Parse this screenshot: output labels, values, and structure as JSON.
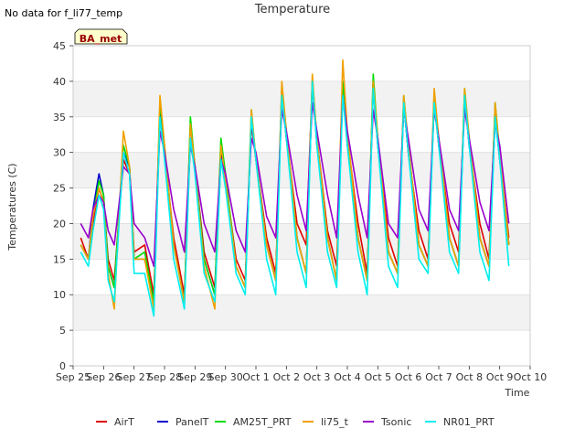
{
  "header": {
    "no_data_note": "No data for f_li77_temp",
    "title": "Temperature"
  },
  "annotation_box": {
    "label": "BA_met",
    "bg": "#ffffcc",
    "text_color": "#990000"
  },
  "chart_data": {
    "type": "line",
    "title": "Temperature",
    "xlabel": "Time",
    "ylabel": "Temperatures (C)",
    "ylim": [
      0,
      45
    ],
    "yticks": [
      0,
      5,
      10,
      15,
      20,
      25,
      30,
      35,
      40,
      45
    ],
    "xlim": [
      0,
      15
    ],
    "xticks": [
      "Sep 25",
      "Sep 26",
      "Sep 27",
      "Sep 28",
      "Sep 29",
      "Sep 30",
      "Oct 1",
      "Oct 2",
      "Oct 3",
      "Oct 4",
      "Oct 5",
      "Oct 6",
      "Oct 7",
      "Oct 8",
      "Oct 9",
      "Oct 10"
    ],
    "grid": true,
    "legend_position": "bottom",
    "series": [
      {
        "name": "AirT",
        "color": "#dd0000",
        "x": [
          0.25,
          0.5,
          0.65,
          0.85,
          1.0,
          1.15,
          1.35,
          1.65,
          1.85,
          2.0,
          2.35,
          2.65,
          2.85,
          3.0,
          3.3,
          3.65,
          3.85,
          4.0,
          4.3,
          4.65,
          4.85,
          5.0,
          5.35,
          5.65,
          5.85,
          6.0,
          6.35,
          6.65,
          6.85,
          7.0,
          7.35,
          7.65,
          7.85,
          8.0,
          8.35,
          8.65,
          8.85,
          9.0,
          9.35,
          9.65,
          9.85,
          10.0,
          10.35,
          10.65,
          10.85,
          11.0,
          11.35,
          11.65,
          11.85,
          12.0,
          12.35,
          12.65,
          12.85,
          13.0,
          13.35,
          13.65,
          13.85,
          14.0,
          14.3
        ],
        "y": [
          18,
          15,
          20,
          25,
          23,
          15,
          12,
          29,
          27,
          16,
          17,
          10,
          36,
          30,
          18,
          10,
          32,
          28,
          16,
          11,
          29,
          26,
          15,
          12,
          34,
          29,
          18,
          13,
          38,
          32,
          20,
          17,
          40,
          32,
          19,
          14,
          39,
          32,
          20,
          13,
          39,
          31,
          18,
          14,
          37,
          30,
          19,
          15,
          37,
          31,
          20,
          16,
          38,
          31,
          20,
          15,
          36,
          29,
          18
        ]
      },
      {
        "name": "PanelT",
        "color": "#0000cc",
        "x": [
          0.25,
          0.5,
          0.65,
          0.85,
          1.0,
          1.15,
          1.35,
          1.65,
          1.85,
          2.0,
          2.35,
          2.65,
          2.85,
          3.0,
          3.3,
          3.65,
          3.85,
          4.0,
          4.3,
          4.65,
          4.85,
          5.0,
          5.35,
          5.65,
          5.85,
          6.0,
          6.35,
          6.65,
          6.85,
          7.0,
          7.35,
          7.65,
          7.85,
          8.0,
          8.35,
          8.65,
          8.85,
          9.0,
          9.35,
          9.65,
          9.85,
          10.0,
          10.35,
          10.65,
          10.85,
          11.0,
          11.35,
          11.65,
          11.85,
          12.0,
          12.35,
          12.65,
          12.85,
          13.0,
          13.35,
          13.65,
          13.85,
          14.0,
          14.3
        ],
        "y": [
          17,
          15,
          22,
          27,
          24,
          14,
          11,
          30,
          28,
          15,
          15,
          9,
          36,
          30,
          17,
          9,
          34,
          28,
          15,
          10,
          30,
          26,
          14,
          11,
          35,
          29,
          17,
          12,
          39,
          32,
          18,
          13,
          40,
          31,
          18,
          12,
          39,
          31,
          18,
          12,
          40,
          31,
          16,
          13,
          37,
          30,
          17,
          14,
          38,
          31,
          18,
          14,
          38,
          31,
          18,
          14,
          35,
          29,
          17
        ]
      },
      {
        "name": "AM25T_PRT",
        "color": "#00dd00",
        "x": [
          0.25,
          0.5,
          0.65,
          0.85,
          1.0,
          1.15,
          1.35,
          1.65,
          1.85,
          2.0,
          2.35,
          2.65,
          2.85,
          3.0,
          3.3,
          3.65,
          3.85,
          4.0,
          4.3,
          4.65,
          4.85,
          5.0,
          5.35,
          5.65,
          5.85,
          6.0,
          6.35,
          6.65,
          6.85,
          7.0,
          7.35,
          7.65,
          7.85,
          8.0,
          8.35,
          8.65,
          8.85,
          9.0,
          9.35,
          9.65,
          9.85,
          10.0,
          10.35,
          10.65,
          10.85,
          11.0,
          11.35,
          11.65,
          11.85,
          12.0,
          12.35,
          12.65,
          12.85,
          13.0,
          13.35,
          13.65,
          13.85,
          14.0,
          14.3
        ],
        "y": [
          17,
          15,
          21,
          26,
          24,
          14,
          11,
          31,
          28,
          15,
          16,
          9,
          37,
          31,
          17,
          9,
          35,
          28,
          15,
          10,
          32,
          27,
          14,
          11,
          36,
          29,
          17,
          12,
          39,
          33,
          18,
          13,
          40,
          32,
          18,
          12,
          40,
          32,
          18,
          12,
          41,
          32,
          16,
          13,
          38,
          31,
          17,
          14,
          38,
          32,
          18,
          14,
          39,
          32,
          18,
          14,
          37,
          30,
          17
        ]
      },
      {
        "name": "li75_t",
        "color": "#f0a000",
        "x": [
          0.25,
          0.5,
          0.65,
          0.85,
          1.0,
          1.15,
          1.35,
          1.65,
          1.85,
          2.0,
          2.35,
          2.65,
          2.85,
          3.0,
          3.3,
          3.65,
          3.85,
          4.0,
          4.3,
          4.65,
          4.85,
          5.0,
          5.35,
          5.65,
          5.85,
          6.0,
          6.35,
          6.65,
          6.85,
          7.0,
          7.35,
          7.65,
          7.85,
          8.0,
          8.35,
          8.65,
          8.85,
          9.0,
          9.35,
          9.65,
          9.85,
          10.0,
          10.35,
          10.65,
          10.85,
          11.0,
          11.35,
          11.65,
          11.85,
          12.0,
          12.35,
          12.65,
          12.85,
          13.0,
          13.35,
          13.65,
          13.85,
          14.0,
          14.3
        ],
        "y": [
          17,
          15,
          21,
          25,
          23,
          13,
          8,
          33,
          28,
          15,
          15,
          8,
          38,
          31,
          17,
          9,
          34,
          28,
          14,
          8,
          31,
          26,
          14,
          11,
          36,
          29,
          17,
          12,
          40,
          33,
          18,
          13,
          41,
          32,
          18,
          12,
          43,
          33,
          18,
          12,
          40,
          32,
          16,
          13,
          38,
          31,
          17,
          14,
          39,
          32,
          18,
          14,
          39,
          32,
          18,
          14,
          37,
          30,
          17
        ]
      },
      {
        "name": "Tsonic",
        "color": "#9900cc",
        "x": [
          0.25,
          0.5,
          0.65,
          0.85,
          1.0,
          1.15,
          1.35,
          1.65,
          1.85,
          2.0,
          2.35,
          2.65,
          2.85,
          3.0,
          3.3,
          3.65,
          3.85,
          4.0,
          4.3,
          4.65,
          4.85,
          5.0,
          5.35,
          5.65,
          5.85,
          6.0,
          6.35,
          6.65,
          6.85,
          7.0,
          7.35,
          7.65,
          7.85,
          8.0,
          8.35,
          8.65,
          8.85,
          9.0,
          9.35,
          9.65,
          9.85,
          10.0,
          10.35,
          10.65,
          10.85,
          11.0,
          11.35,
          11.65,
          11.85,
          12.0,
          12.35,
          12.65,
          12.85,
          13.0,
          13.35,
          13.65,
          13.85,
          14.0,
          14.3
        ],
        "y": [
          20,
          18,
          22,
          24,
          23,
          19,
          17,
          28,
          27,
          20,
          18,
          14,
          33,
          30,
          22,
          16,
          31,
          28,
          20,
          16,
          29,
          27,
          19,
          16,
          32,
          30,
          21,
          18,
          36,
          33,
          24,
          19,
          37,
          33,
          24,
          18,
          38,
          33,
          24,
          18,
          36,
          32,
          20,
          18,
          36,
          32,
          22,
          19,
          36,
          32,
          22,
          19,
          36,
          32,
          23,
          19,
          34,
          31,
          20
        ]
      },
      {
        "name": "NR01_PRT",
        "color": "#00eeee",
        "x": [
          0.25,
          0.5,
          0.65,
          0.85,
          1.0,
          1.15,
          1.35,
          1.65,
          1.85,
          2.0,
          2.35,
          2.65,
          2.85,
          3.0,
          3.3,
          3.65,
          3.85,
          4.0,
          4.3,
          4.65,
          4.85,
          5.0,
          5.35,
          5.65,
          5.85,
          6.0,
          6.35,
          6.65,
          6.85,
          7.0,
          7.35,
          7.65,
          7.85,
          8.0,
          8.35,
          8.65,
          8.85,
          9.0,
          9.35,
          9.65,
          9.85,
          10.0,
          10.35,
          10.65,
          10.85,
          11.0,
          11.35,
          11.65,
          11.85,
          12.0,
          12.35,
          12.65,
          12.85,
          13.0,
          13.35,
          13.65,
          13.85,
          14.0,
          14.3
        ],
        "y": [
          16,
          14,
          19,
          24,
          22,
          12,
          9,
          30,
          27,
          13,
          13,
          7,
          35,
          29,
          15,
          8,
          32,
          27,
          13,
          9,
          29,
          25,
          13,
          10,
          35,
          29,
          15,
          10,
          38,
          32,
          16,
          11,
          40,
          31,
          16,
          11,
          38,
          31,
          16,
          10,
          39,
          31,
          14,
          11,
          37,
          30,
          15,
          13,
          37,
          31,
          16,
          13,
          38,
          31,
          16,
          12,
          35,
          29,
          14
        ]
      }
    ]
  }
}
